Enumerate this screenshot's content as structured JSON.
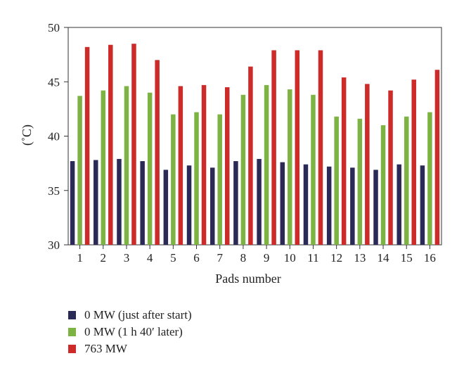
{
  "chart_data": {
    "type": "bar",
    "title": "",
    "xlabel": "Pads number",
    "ylabel": "(˚C)",
    "ylim": [
      30,
      50
    ],
    "yticks": [
      30,
      35,
      40,
      45,
      50
    ],
    "grid": false,
    "legend_position": "bottom-left",
    "categories": [
      "1",
      "2",
      "3",
      "4",
      "5",
      "6",
      "7",
      "8",
      "9",
      "10",
      "11",
      "12",
      "13",
      "14",
      "15",
      "16"
    ],
    "series": [
      {
        "name": "0 MW (just after start)",
        "color": "#2b2a57",
        "values": [
          37.7,
          37.8,
          37.9,
          37.7,
          36.9,
          37.3,
          37.1,
          37.7,
          37.9,
          37.6,
          37.4,
          37.2,
          37.1,
          36.9,
          37.4,
          37.3
        ]
      },
      {
        "name": "0 MW (1 h 40′ later)",
        "color": "#7cb342",
        "values": [
          43.7,
          44.2,
          44.6,
          44.0,
          42.0,
          42.2,
          42.0,
          43.8,
          44.7,
          44.3,
          43.8,
          41.8,
          41.6,
          41.0,
          41.8,
          42.2
        ]
      },
      {
        "name": "763 MW",
        "color": "#cc2b29",
        "values": [
          48.2,
          48.4,
          48.5,
          47.0,
          44.6,
          44.7,
          44.5,
          46.4,
          47.9,
          47.9,
          47.9,
          45.4,
          44.8,
          44.2,
          45.2,
          46.1
        ]
      }
    ]
  }
}
